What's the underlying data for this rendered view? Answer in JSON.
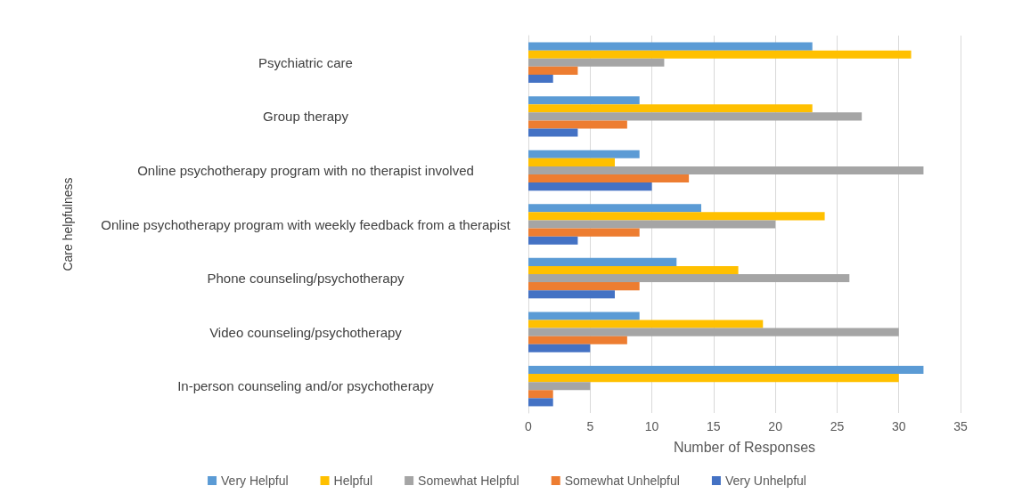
{
  "chart_data": {
    "type": "bar",
    "orientation": "horizontal",
    "xlabel": "Number of Responses",
    "ylabel": "Care helpfulness",
    "categories": [
      "Psychiatric care",
      "Group therapy",
      "Online psychotherapy program with no therapist involved",
      "Online psychotherapy program with weekly feedback from a therapist",
      "Phone counseling/psychotherapy",
      "Video counseling/psychotherapy",
      "In-person counseling and/or psychotherapy"
    ],
    "series": [
      {
        "name": "Very Helpful",
        "color": "#5b9bd5",
        "values": [
          23,
          9,
          9,
          14,
          12,
          9,
          32
        ]
      },
      {
        "name": "Helpful",
        "color": "#ffc000",
        "values": [
          31,
          23,
          7,
          24,
          17,
          19,
          30
        ]
      },
      {
        "name": "Somewhat Helpful",
        "color": "#a5a5a5",
        "values": [
          11,
          27,
          32,
          20,
          26,
          30,
          5
        ]
      },
      {
        "name": "Somewhat Unhelpful",
        "color": "#ed7d31",
        "values": [
          4,
          8,
          13,
          9,
          9,
          8,
          2
        ]
      },
      {
        "name": "Very Unhelpful",
        "color": "#4472c4",
        "values": [
          2,
          4,
          10,
          4,
          7,
          5,
          2
        ]
      }
    ],
    "xlim": [
      0,
      35
    ],
    "xticks": [
      0,
      5,
      10,
      15,
      20,
      25,
      30,
      35
    ],
    "grid": "x",
    "legend": "bottom"
  }
}
